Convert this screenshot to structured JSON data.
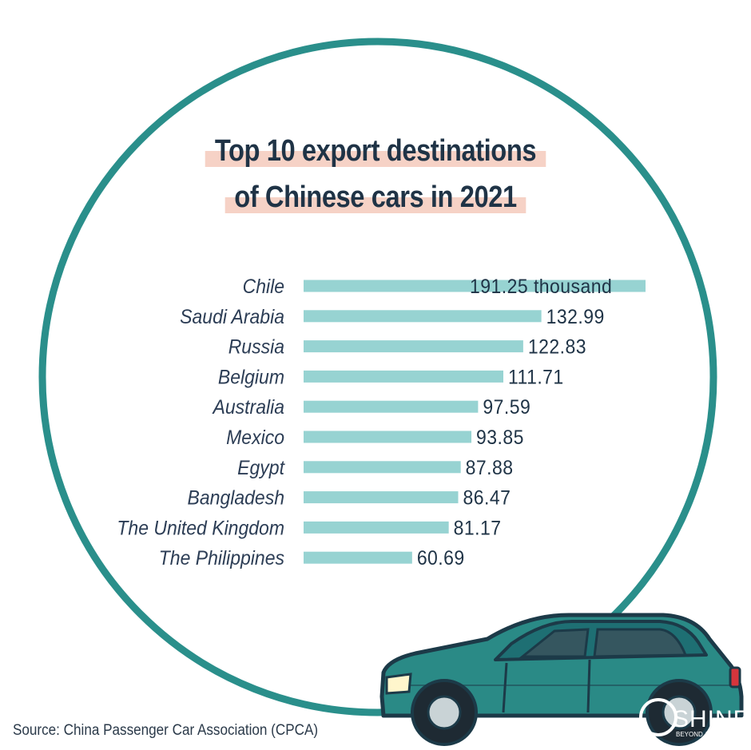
{
  "title_line_1": "Top 10 export destinations",
  "title_line_2": "of Chinese cars in 2021",
  "source": "Source: China Passenger Car Association (CPCA)",
  "logo": {
    "text": "SHINE",
    "tagline": "BEYOND A S"
  },
  "colors": {
    "bar": "#97d3d2",
    "circle": "#2a8f8b",
    "title_highlight": "#f6d2c6",
    "text": "#1f3346",
    "car_body": "#2a8a86"
  },
  "chart_data": {
    "type": "bar",
    "orientation": "horizontal",
    "title": "Top 10 export destinations of Chinese cars in 2021",
    "categories": [
      "Chile",
      "Saudi Arabia",
      "Russia",
      "Belgium",
      "Australia",
      "Mexico",
      "Egypt",
      "Bangladesh",
      "The United Kingdom",
      "The Philippines"
    ],
    "values": [
      191.25,
      132.99,
      122.83,
      111.71,
      97.59,
      93.85,
      87.88,
      86.47,
      81.17,
      60.69
    ],
    "value_labels": [
      "191.25 thousand",
      "132.99",
      "122.83",
      "111.71",
      "97.59",
      "93.85",
      "87.88",
      "86.47",
      "81.17",
      "60.69"
    ],
    "xlim": [
      0,
      191.25
    ],
    "grid": false,
    "legend": "none"
  }
}
